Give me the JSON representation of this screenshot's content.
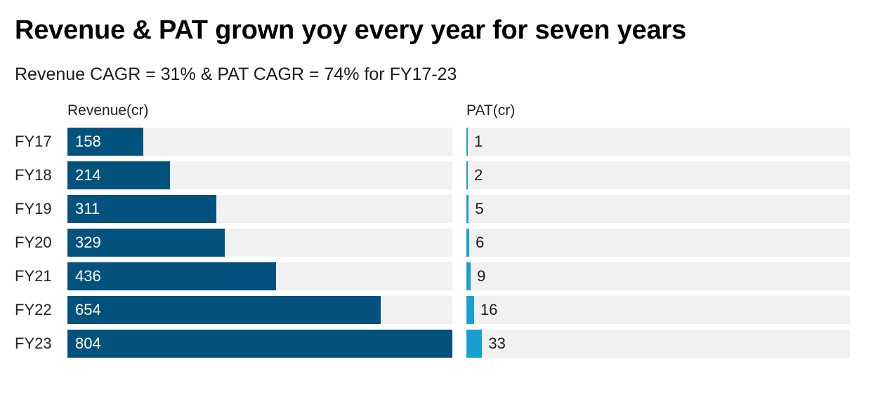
{
  "title": "Revenue & PAT grown yoy every year for seven years",
  "subtitle": "Revenue CAGR = 31% & PAT CAGR = 74% for FY17-23",
  "colors": {
    "revenue_bar": "#03527d",
    "pat_bar": "#1b9fd0",
    "track": "#f1f1f1",
    "label_on_bar": "#ffffff",
    "label_off_bar": "#1a1a1a"
  },
  "chart_data": {
    "type": "bar",
    "orientation": "horizontal",
    "categories": [
      "FY17",
      "FY18",
      "FY19",
      "FY20",
      "FY21",
      "FY22",
      "FY23"
    ],
    "series": [
      {
        "name": "Revenue(cr)",
        "values": [
          158,
          214,
          311,
          329,
          436,
          654,
          804
        ],
        "xlim": [
          0,
          804
        ]
      },
      {
        "name": "PAT(cr)",
        "values": [
          1,
          2,
          5,
          6,
          9,
          16,
          33
        ],
        "xlim": [
          0,
          804
        ]
      }
    ],
    "legend": "none",
    "grid": false
  }
}
